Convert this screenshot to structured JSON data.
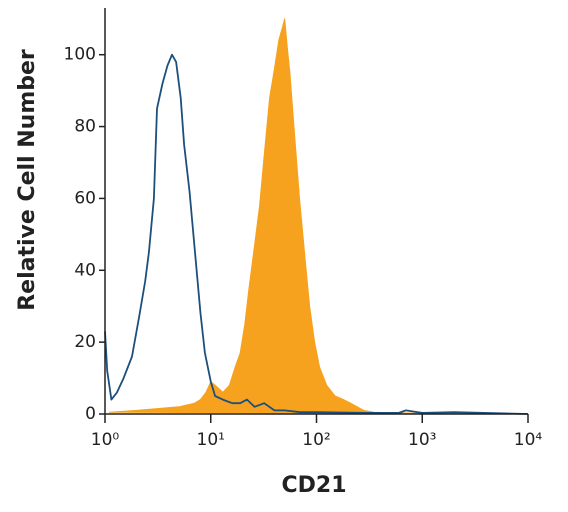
{
  "chart_data": {
    "type": "histogram-overlay",
    "x_label": "CD21",
    "y_label": "Relative Cell Number",
    "xlim": [
      1,
      10000
    ],
    "log_x": true,
    "xticks": [
      {
        "value": 1,
        "label": "10⁰"
      },
      {
        "value": 10,
        "label": "10¹"
      },
      {
        "value": 100,
        "label": "10²"
      },
      {
        "value": 1000,
        "label": "10³"
      },
      {
        "value": 10000,
        "label": "10⁴"
      }
    ],
    "ylim": [
      0,
      113
    ],
    "yticks": [
      0,
      20,
      40,
      60,
      80,
      100
    ],
    "series": [
      {
        "color": "#f7a21e",
        "filled": true,
        "x": [
          1.1,
          2,
          5,
          7,
          8,
          9,
          10,
          11,
          12,
          13,
          15,
          17,
          19,
          21,
          23,
          26,
          29,
          32,
          36,
          40,
          44,
          48,
          50,
          53,
          56,
          62,
          69,
          77,
          86,
          96,
          107,
          125,
          150,
          180,
          210,
          280,
          350,
          500,
          1000,
          2000,
          10000
        ],
        "values": [
          0.5,
          1,
          2,
          3,
          4,
          6,
          9,
          8,
          7,
          6,
          8,
          13,
          17,
          25,
          35,
          47,
          58,
          72,
          88,
          96,
          104,
          108,
          110,
          102,
          95,
          78,
          60,
          45,
          30,
          20,
          13,
          8,
          5,
          4,
          3,
          1,
          0.5,
          0.3,
          0.2,
          0.3,
          0
        ]
      },
      {
        "color": "#1d4f7c",
        "filled": false,
        "x": [
          1,
          1.05,
          1.15,
          1.3,
          1.5,
          1.8,
          2.1,
          2.4,
          2.6,
          2.9,
          3.1,
          3.5,
          3.9,
          4.3,
          4.7,
          5.2,
          5.6,
          6.3,
          7.1,
          8,
          8.8,
          10,
          11,
          13,
          16,
          19,
          22,
          26,
          32,
          40,
          50,
          70,
          100,
          300,
          600,
          700,
          1000,
          2000,
          10000
        ],
        "values": [
          23,
          12,
          4,
          6,
          10,
          16,
          27,
          37,
          45,
          60,
          85,
          92,
          97,
          100,
          98,
          88,
          75,
          62,
          45,
          28,
          17,
          9,
          5,
          4,
          3,
          3,
          4,
          2,
          3,
          1,
          1,
          0.5,
          0.5,
          0.3,
          0.3,
          1,
          0.3,
          0.5,
          0
        ]
      }
    ]
  }
}
